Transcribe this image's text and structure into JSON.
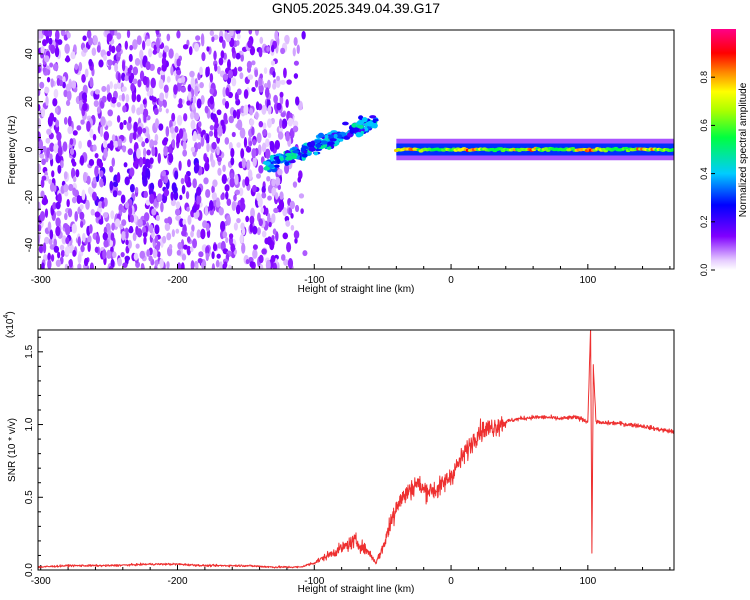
{
  "title": "GN05.2025.349.04.39.G17",
  "colors": {
    "snr_line": "#ee3030",
    "spectrogram_sparse": "#8844ee",
    "spectrogram_dense": "#5500dd",
    "frame": "#000000"
  },
  "chart_data": [
    {
      "type": "heatmap",
      "xlabel": "Height of straight line (km)",
      "ylabel": "Frequency (Hz)",
      "xlim": [
        -302,
        163
      ],
      "ylim": [
        -50,
        50
      ],
      "xticks": [
        -300,
        -200,
        -100,
        0,
        100
      ],
      "yticks": [
        -40,
        -20,
        0,
        20,
        40
      ],
      "colorbar": {
        "label": "Normalized spectral amplitude",
        "range": [
          0,
          1
        ],
        "ticks": [
          "0.0",
          "0.2",
          "0.4",
          "0.6",
          "0.8"
        ],
        "colormap": "rainbow (white → violet → blue → cyan → green → yellow → orange → red → magenta)"
      },
      "features": [
        {
          "name": "noise",
          "x_range": [
            -302,
            -120
          ],
          "y_range": [
            -50,
            50
          ],
          "amplitude": "0.05-0.2"
        },
        {
          "name": "rising chirp",
          "x_range": [
            -135,
            -55
          ],
          "y_start": -7,
          "y_end": 12,
          "amplitude": "0.2-0.45"
        },
        {
          "name": "steady tone",
          "x_range": [
            -40,
            163
          ],
          "y": 0,
          "amplitude": "0.6-0.95"
        }
      ]
    },
    {
      "type": "line",
      "xlabel": "Height of straight line (km)",
      "ylabel": "SNR (10 * v/v)",
      "y_multiplier": "(x10",
      "y_multiplier_exp": "4",
      "xlim": [
        -302,
        163
      ],
      "ylim": [
        0,
        1.65
      ],
      "xticks": [
        -300,
        -200,
        -100,
        0,
        100
      ],
      "yticks": [
        "0.0",
        "0.5",
        "1.0",
        "1.5"
      ],
      "series": [
        {
          "x": [
            -302,
            -280,
            -250,
            -220,
            -200,
            -180,
            -150,
            -130,
            -110,
            -100,
            -90,
            -80,
            -70,
            -60,
            -55,
            -50,
            -45,
            -40,
            -35,
            -30,
            -25,
            -20,
            -15,
            -10,
            -5,
            0,
            10,
            20,
            30,
            40,
            50,
            60,
            70,
            80,
            90,
            95,
            100,
            102,
            103,
            104,
            106,
            110,
            120,
            130,
            140,
            150,
            163
          ],
          "y": [
            0.02,
            0.03,
            0.03,
            0.04,
            0.04,
            0.03,
            0.03,
            0.02,
            0.02,
            0.05,
            0.1,
            0.15,
            0.2,
            0.12,
            0.05,
            0.15,
            0.3,
            0.45,
            0.5,
            0.55,
            0.6,
            0.55,
            0.55,
            0.55,
            0.6,
            0.65,
            0.8,
            0.95,
            0.98,
            1.02,
            1.04,
            1.05,
            1.05,
            1.04,
            1.05,
            1.04,
            1.02,
            1.66,
            0.12,
            1.4,
            1.02,
            1.01,
            1.01,
            1.0,
            0.99,
            0.97,
            0.95
          ]
        }
      ]
    }
  ]
}
